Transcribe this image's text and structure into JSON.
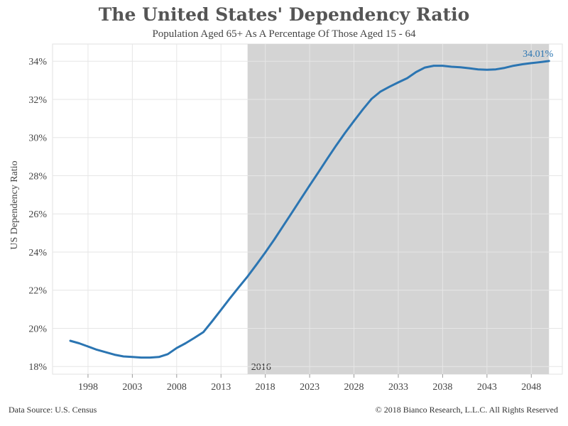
{
  "chart_data": {
    "type": "line",
    "title": "The United States' Dependency Ratio",
    "subtitle": "Population Aged 65+ As A Percentage Of Those Aged 15 - 64",
    "ylabel": "US Dependency Ratio",
    "xlim": [
      1994,
      2051.5
    ],
    "ylim": [
      17.6,
      34.9
    ],
    "x_ticks": [
      1998,
      2003,
      2008,
      2013,
      2018,
      2023,
      2028,
      2033,
      2038,
      2043,
      2048
    ],
    "x_tick_labels": [
      "1998",
      "2003",
      "2008",
      "2013",
      "2018",
      "2023",
      "2028",
      "2033",
      "2038",
      "2043",
      "2048"
    ],
    "y_ticks": [
      18,
      20,
      22,
      24,
      26,
      28,
      30,
      32,
      34
    ],
    "y_tick_labels": [
      "18%",
      "20%",
      "22%",
      "24%",
      "26%",
      "28%",
      "30%",
      "32%",
      "34%"
    ],
    "grid": true,
    "shaded_region": {
      "from": 2016,
      "to": 2050,
      "color": "#d4d4d4",
      "label": "2016"
    },
    "series": [
      {
        "color": "#2b75b2",
        "end_label": "34.01%",
        "x": [
          1996,
          1997,
          1998,
          1999,
          2000,
          2001,
          2002,
          2003,
          2004,
          2005,
          2006,
          2007,
          2008,
          2009,
          2010,
          2011,
          2012,
          2013,
          2014,
          2015,
          2016,
          2017,
          2018,
          2019,
          2020,
          2021,
          2022,
          2023,
          2024,
          2025,
          2026,
          2027,
          2028,
          2029,
          2030,
          2031,
          2032,
          2033,
          2034,
          2035,
          2036,
          2037,
          2038,
          2039,
          2040,
          2041,
          2042,
          2043,
          2044,
          2045,
          2046,
          2047,
          2048,
          2049,
          2050
        ],
        "y": [
          19.35,
          19.22,
          19.05,
          18.88,
          18.75,
          18.62,
          18.53,
          18.5,
          18.47,
          18.47,
          18.5,
          18.65,
          18.97,
          19.22,
          19.5,
          19.8,
          20.37,
          20.97,
          21.57,
          22.15,
          22.72,
          23.34,
          23.98,
          24.65,
          25.36,
          26.06,
          26.78,
          27.49,
          28.19,
          28.9,
          29.59,
          30.25,
          30.87,
          31.47,
          32.03,
          32.41,
          32.66,
          32.89,
          33.11,
          33.43,
          33.67,
          33.76,
          33.76,
          33.71,
          33.68,
          33.63,
          33.57,
          33.55,
          33.57,
          33.65,
          33.76,
          33.84,
          33.9,
          33.95,
          34.01
        ]
      }
    ]
  },
  "footer": {
    "source": "Data Source: U.S. Census",
    "copyright": "© 2018 Bianco Research, L.L.C. All Rights Reserved"
  }
}
